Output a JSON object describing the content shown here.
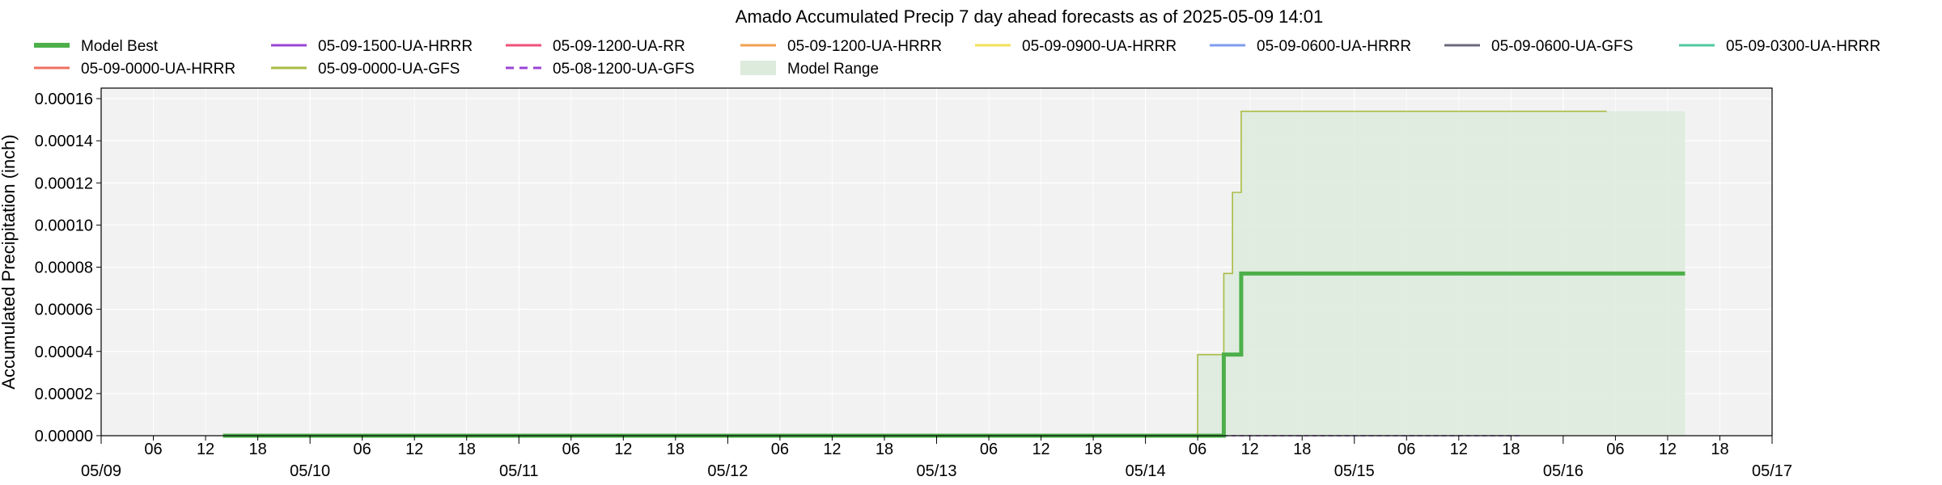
{
  "chart_data": {
    "type": "line",
    "title": "Amado Accumulated Precip 7 day ahead forecasts as of 2025-05-09 14:01",
    "ylabel": "Accumulated Precipitation (inch)",
    "xlabel": "",
    "xlim": [
      "2025-05-09 00:00",
      "2025-05-17 00:00"
    ],
    "ylim": [
      0,
      0.000165
    ],
    "y_ticks": [
      "0.00000",
      "0.00002",
      "0.00004",
      "0.00006",
      "0.00008",
      "0.00010",
      "0.00012",
      "0.00014",
      "0.00016"
    ],
    "x_major_ticks": [
      {
        "t": "2025-05-09 00:00",
        "label": "05/09"
      },
      {
        "t": "2025-05-10 00:00",
        "label": "05/10"
      },
      {
        "t": "2025-05-11 00:00",
        "label": "05/11"
      },
      {
        "t": "2025-05-12 00:00",
        "label": "05/12"
      },
      {
        "t": "2025-05-13 00:00",
        "label": "05/13"
      },
      {
        "t": "2025-05-14 00:00",
        "label": "05/14"
      },
      {
        "t": "2025-05-15 00:00",
        "label": "05/15"
      },
      {
        "t": "2025-05-16 00:00",
        "label": "05/16"
      },
      {
        "t": "2025-05-17 00:00",
        "label": "05/17"
      }
    ],
    "x_minor_labels": [
      "06",
      "12",
      "18"
    ],
    "grid": true,
    "legend_position": "top",
    "legend": [
      {
        "name": "Model Best",
        "color": "#4daf4a",
        "style": "thick"
      },
      {
        "name": "05-09-1500-UA-HRRR",
        "color": "#9b45d6",
        "style": "solid"
      },
      {
        "name": "05-09-1200-UA-RR",
        "color": "#f0507a",
        "style": "solid"
      },
      {
        "name": "05-09-1200-UA-HRRR",
        "color": "#f5a050",
        "style": "solid"
      },
      {
        "name": "05-09-0900-UA-HRRR",
        "color": "#f2e05a",
        "style": "solid"
      },
      {
        "name": "05-09-0600-UA-HRRR",
        "color": "#7e9cf0",
        "style": "solid"
      },
      {
        "name": "05-09-0600-UA-GFS",
        "color": "#6b6b7b",
        "style": "solid"
      },
      {
        "name": "05-09-0300-UA-HRRR",
        "color": "#50c8a0",
        "style": "solid"
      },
      {
        "name": "05-09-0000-UA-HRRR",
        "color": "#f07060",
        "style": "solid"
      },
      {
        "name": "05-09-0000-UA-GFS",
        "color": "#aabb44",
        "style": "solid"
      },
      {
        "name": "05-08-1200-UA-GFS",
        "color": "#9b45d6",
        "style": "dashed"
      },
      {
        "name": "Model Range",
        "color": "#dcebdc",
        "style": "patch"
      }
    ],
    "series": [
      {
        "name": "05-09-0000-UA-GFS",
        "color": "#aabb44",
        "points": [
          [
            "2025-05-09 14:00",
            0
          ],
          [
            "2025-05-14 06:00",
            0
          ],
          [
            "2025-05-14 06:00",
            3.85e-05
          ],
          [
            "2025-05-14 09:00",
            3.85e-05
          ],
          [
            "2025-05-14 09:00",
            7.7e-05
          ],
          [
            "2025-05-14 10:00",
            7.7e-05
          ],
          [
            "2025-05-14 10:00",
            0.0001155
          ],
          [
            "2025-05-14 11:00",
            0.0001155
          ],
          [
            "2025-05-14 11:00",
            0.000154
          ],
          [
            "2025-05-16 05:00",
            0.000154
          ]
        ]
      },
      {
        "name": "05-08-1200-UA-GFS",
        "color": "#9b45d6",
        "points": [
          [
            "2025-05-14 08:00",
            0
          ],
          [
            "2025-05-15 19:00",
            0
          ]
        ]
      },
      {
        "name": "Model Best",
        "color": "#4daf4a",
        "points": [
          [
            "2025-05-09 14:00",
            0
          ],
          [
            "2025-05-14 09:00",
            0
          ],
          [
            "2025-05-14 09:00",
            3.85e-05
          ],
          [
            "2025-05-14 11:00",
            3.85e-05
          ],
          [
            "2025-05-14 11:00",
            7.7e-05
          ],
          [
            "2025-05-16 14:00",
            7.7e-05
          ]
        ]
      }
    ],
    "range": {
      "name": "Model Range",
      "color": "#dcebdc",
      "upper": [
        [
          "2025-05-14 06:00",
          3.85e-05
        ],
        [
          "2025-05-14 09:00",
          3.85e-05
        ],
        [
          "2025-05-14 09:00",
          7.7e-05
        ],
        [
          "2025-05-14 10:00",
          7.7e-05
        ],
        [
          "2025-05-14 10:00",
          0.0001155
        ],
        [
          "2025-05-14 11:00",
          0.0001155
        ],
        [
          "2025-05-14 11:00",
          0.000154
        ],
        [
          "2025-05-16 14:00",
          0.000154
        ]
      ],
      "lower_value": 0
    }
  }
}
